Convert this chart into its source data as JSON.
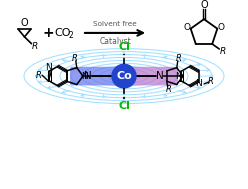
{
  "bg_color": "#ffffff",
  "arrow_text_top": "Solvent free",
  "arrow_text_bottom": "Catalyst",
  "co_color": "#2244cc",
  "co_label": "Co",
  "cl_color": "#00bb00",
  "magnetic_line_color": "#99ddff",
  "band_blue": "#6677ee",
  "band_pink": "#bb77cc",
  "text_dark": "#111111",
  "text_gray": "#555555",
  "arrow_color": "#88ccee"
}
